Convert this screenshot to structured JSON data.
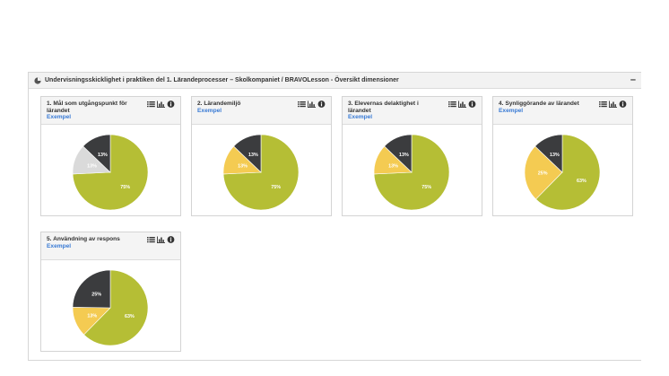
{
  "panel": {
    "title": "Undervisningsskicklighet i praktiken del 1. Lärandeprocesser – Skolkompaniet / BRAVOLesson - Översikt dimensioner",
    "collapse": "–"
  },
  "colors": {
    "green": "#b5be35",
    "yellow": "#f4cb52",
    "dark": "#3b3c3e",
    "grey": "#dadada"
  },
  "cards": [
    {
      "title": "1. Mål som utgångspunkt för lärandet",
      "subtitle": "Exempel"
    },
    {
      "title": "2. Lärandemiljö",
      "subtitle": "Exempel"
    },
    {
      "title": "3. Elevernas delaktighet i lärandet",
      "subtitle": "Exempel"
    },
    {
      "title": "4. Synliggörande av lärandet",
      "subtitle": "Exempel"
    },
    {
      "title": "5. Användning av respons",
      "subtitle": "Exempel"
    }
  ],
  "chart_data": [
    {
      "type": "pie",
      "slices": [
        {
          "value": 75,
          "label": "75%",
          "color": "green"
        },
        {
          "value": 13,
          "label": "13%",
          "color": "grey"
        },
        {
          "value": 13,
          "label": "13%",
          "color": "dark"
        }
      ]
    },
    {
      "type": "pie",
      "slices": [
        {
          "value": 75,
          "label": "75%",
          "color": "green"
        },
        {
          "value": 13,
          "label": "13%",
          "color": "yellow"
        },
        {
          "value": 13,
          "label": "13%",
          "color": "dark"
        }
      ]
    },
    {
      "type": "pie",
      "slices": [
        {
          "value": 75,
          "label": "75%",
          "color": "green"
        },
        {
          "value": 13,
          "label": "13%",
          "color": "yellow"
        },
        {
          "value": 13,
          "label": "13%",
          "color": "dark"
        }
      ]
    },
    {
      "type": "pie",
      "slices": [
        {
          "value": 63,
          "label": "63%",
          "color": "green"
        },
        {
          "value": 25,
          "label": "25%",
          "color": "yellow"
        },
        {
          "value": 13,
          "label": "13%",
          "color": "dark"
        }
      ]
    },
    {
      "type": "pie",
      "slices": [
        {
          "value": 63,
          "label": "63%",
          "color": "green"
        },
        {
          "value": 13,
          "label": "13%",
          "color": "yellow"
        },
        {
          "value": 25,
          "label": "25%",
          "color": "dark"
        }
      ]
    }
  ]
}
